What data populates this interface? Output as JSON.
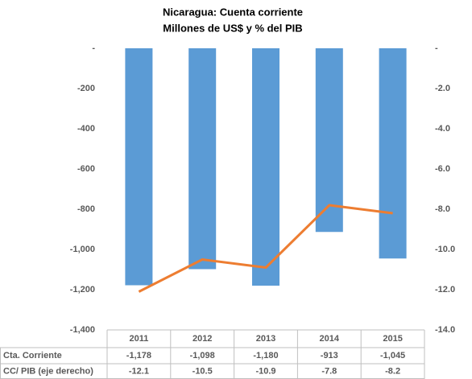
{
  "chart_data": {
    "type": "bar-line",
    "title": "Nicaragua: Cuenta corriente",
    "subtitle": "Millones de US$ y % del PIB",
    "categories": [
      "2011",
      "2012",
      "2013",
      "2014",
      "2015"
    ],
    "series": [
      {
        "name": "Cta. Corriente",
        "type": "bar",
        "color": "#5b9bd5",
        "values": [
          -1178,
          -1098,
          -1180,
          -913,
          -1045
        ],
        "value_labels": [
          "-1,178",
          "-1,098",
          "-1,180",
          "-913",
          "-1,045"
        ]
      },
      {
        "name": "CC/ PIB (eje derecho)",
        "type": "line",
        "axis": "y2",
        "color": "#ed7d31",
        "values": [
          -12.1,
          -10.5,
          -10.9,
          -7.8,
          -8.2
        ]
      }
    ],
    "ylim": [
      -1400,
      0
    ],
    "yticks": [
      {
        "value": 0,
        "label": "-"
      },
      -200,
      -400,
      -600,
      -800,
      {
        "value": -1000,
        "label": "-1,000"
      },
      {
        "value": -1200,
        "label": "-1,200"
      },
      {
        "value": -1400,
        "label": "-1,400"
      }
    ],
    "y2lim": [
      -14,
      0
    ],
    "y2ticks": [
      {
        "value": 0,
        "label": "-"
      },
      {
        "value": -2,
        "label": "-2.0"
      },
      {
        "value": -4,
        "label": "-4.0"
      },
      {
        "value": -6,
        "label": "-6.0"
      },
      {
        "value": -8,
        "label": "-8.0"
      },
      {
        "value": -10,
        "label": "-10.0"
      },
      {
        "value": -12,
        "label": "-12.0"
      },
      {
        "value": -14,
        "label": "-14.0"
      }
    ]
  }
}
